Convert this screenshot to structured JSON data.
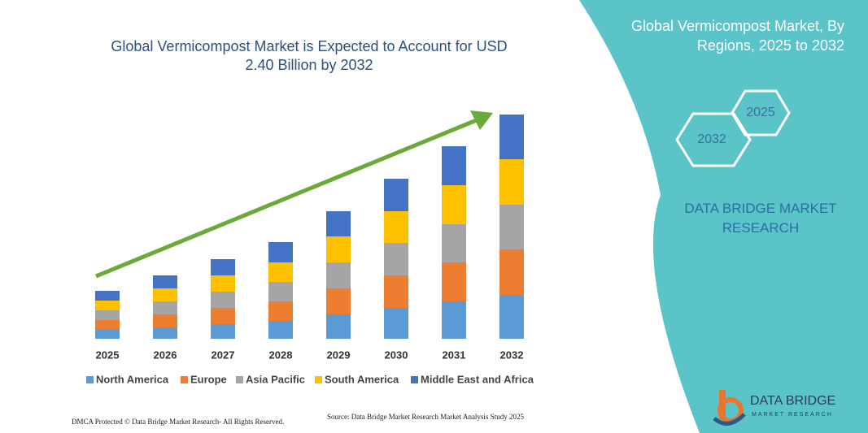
{
  "chart_data": {
    "type": "bar",
    "stacked": true,
    "title": "Global Vermicompost Market is Expected to Account for USD 2.40 Billion by 2032",
    "categories": [
      "2025",
      "2026",
      "2027",
      "2028",
      "2029",
      "2030",
      "2031",
      "2032"
    ],
    "series": [
      {
        "name": "North America",
        "color": "#5b9bd5",
        "values": [
          12,
          14,
          18,
          22,
          30,
          38,
          46,
          54
        ]
      },
      {
        "name": "Europe",
        "color": "#ed7d31",
        "values": [
          11,
          16,
          20,
          24,
          32,
          40,
          48,
          56
        ]
      },
      {
        "name": "Asia Pacific",
        "color": "#a5a5a5",
        "values": [
          12,
          16,
          20,
          24,
          32,
          40,
          47,
          55
        ]
      },
      {
        "name": "South America",
        "color": "#ffc000",
        "values": [
          12,
          16,
          20,
          24,
          32,
          39,
          48,
          56
        ]
      },
      {
        "name": "Middle East and Africa",
        "color": "#4472c4",
        "values": [
          12,
          16,
          20,
          25,
          31,
          40,
          48,
          55
        ]
      }
    ]
  },
  "side_panel": {
    "title": "Global Vermicompost Market, By Regions, 2025 to 2032",
    "hexagons": [
      "2025",
      "2032"
    ],
    "brand": "DATA BRIDGE MARKET RESEARCH"
  },
  "logo": {
    "name": "DATA BRIDGE",
    "tagline": "MARKET RESEARCH"
  },
  "footer": {
    "dmca": "DMCA Protected © Data Bridge Market Research- All Rights Reserved.",
    "source": "Source: Data Bridge Market Research  Market Analysis Study 2025"
  }
}
